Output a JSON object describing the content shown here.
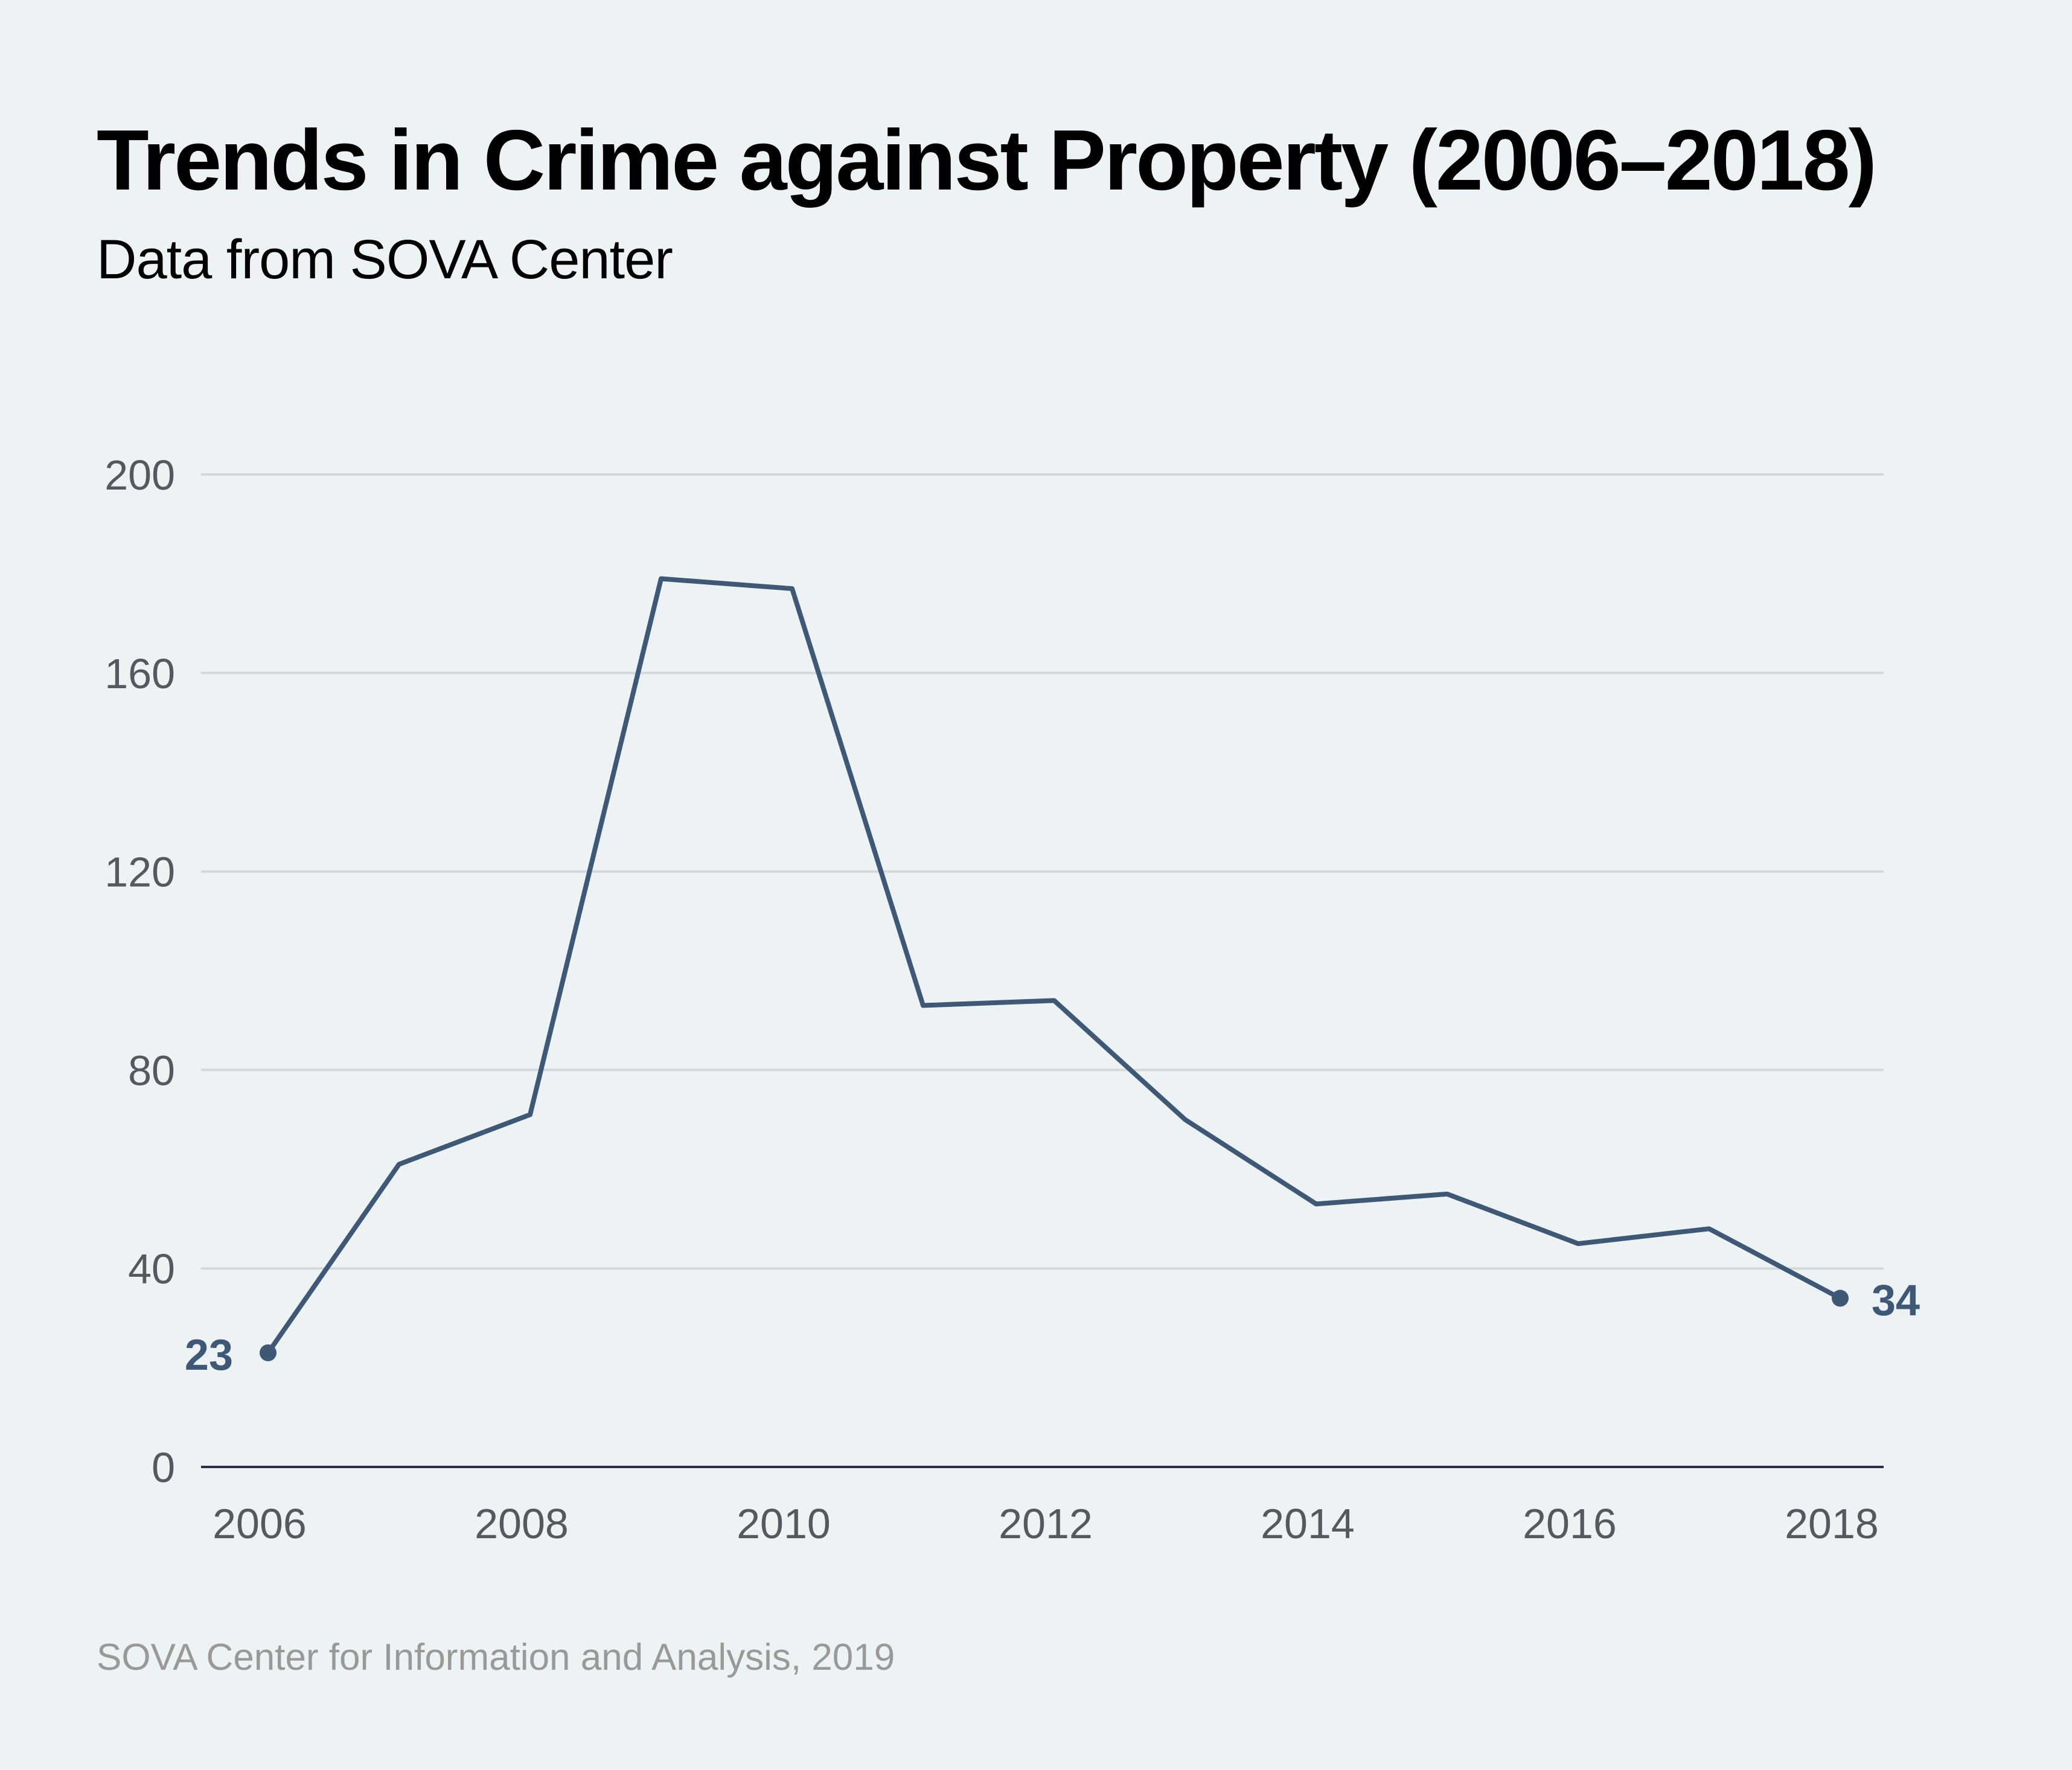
{
  "title": "Trends in Crime against Property (2006–2018)",
  "subtitle": "Data from SOVA Center",
  "footer": "SOVA Center for Information and Analysis, 2019",
  "colors": {
    "background": "#edf2f5",
    "line": "#3f5876",
    "grid": "#d3d8dc",
    "axis": "#2a2d45",
    "tick_text": "#53595f",
    "footer_text": "#999999"
  },
  "chart_data": {
    "type": "line",
    "title": "Trends in Crime against Property (2006–2018)",
    "subtitle": "Data from SOVA Center",
    "xlabel": "",
    "ylabel": "",
    "x": [
      2006,
      2007,
      2008,
      2009,
      2010,
      2011,
      2012,
      2013,
      2014,
      2015,
      2016,
      2017,
      2018
    ],
    "series": [
      {
        "name": "Crime against Property",
        "values": [
          23,
          61,
          71,
          179,
          177,
          93,
          94,
          70,
          53,
          55,
          45,
          48,
          34
        ]
      }
    ],
    "ylim": [
      0,
      200
    ],
    "xlim": [
      2006,
      2018
    ],
    "yticks": [
      0,
      40,
      80,
      120,
      160,
      200
    ],
    "xticks": [
      2006,
      2008,
      2010,
      2012,
      2014,
      2016,
      2018
    ],
    "grid": "horizontal",
    "legend": "none",
    "annotations": [
      {
        "x": 2006,
        "value": 23,
        "label": "23",
        "position": "left"
      },
      {
        "x": 2018,
        "value": 34,
        "label": "34",
        "position": "right"
      }
    ],
    "source": "SOVA Center for Information and Analysis, 2019"
  }
}
